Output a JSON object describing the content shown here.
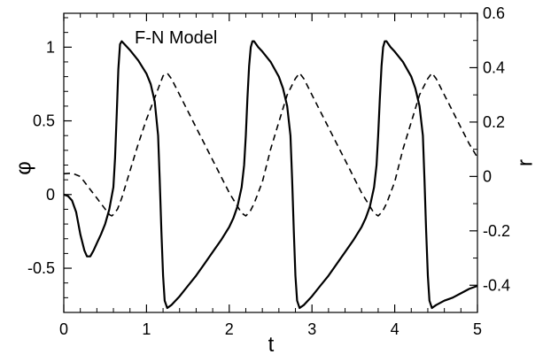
{
  "chart_data": {
    "type": "line",
    "title": "F-N Model",
    "xlabel": "t",
    "ylabel_left": "φ",
    "ylabel_right": "r",
    "xlim": [
      0,
      5
    ],
    "ylim_left": [
      -0.8,
      1.23
    ],
    "ylim_right": [
      -0.5,
      0.6
    ],
    "grid": false,
    "xticks": [
      "0",
      "1",
      "2",
      "3",
      "4",
      "5"
    ],
    "yticks_left": [
      "-0.5",
      "0",
      "0.5",
      "1"
    ],
    "yticks_right": [
      "-0.4",
      "-0.2",
      "0",
      "0.2",
      "0.4",
      "0.6"
    ],
    "series": [
      {
        "axis": "left",
        "style": "solid",
        "color": "#000000",
        "x": [
          0,
          0.05,
          0.1,
          0.15,
          0.2,
          0.25,
          0.28,
          0.32,
          0.36,
          0.4,
          0.45,
          0.5,
          0.55,
          0.6,
          0.62,
          0.64,
          0.66,
          0.68,
          0.7,
          0.75,
          0.8,
          0.9,
          1.0,
          1.05,
          1.1,
          1.14,
          1.16,
          1.18,
          1.2,
          1.22,
          1.25,
          1.3,
          1.4,
          1.5,
          1.6,
          1.7,
          1.8,
          1.9,
          2.0,
          2.05,
          2.1,
          2.15,
          2.18,
          2.2,
          2.22,
          2.24,
          2.26,
          2.28,
          2.3,
          2.35,
          2.4,
          2.5,
          2.6,
          2.65,
          2.7,
          2.74,
          2.76,
          2.78,
          2.8,
          2.82,
          2.85,
          2.9,
          3.0,
          3.1,
          3.2,
          3.3,
          3.4,
          3.5,
          3.6,
          3.65,
          3.7,
          3.75,
          3.78,
          3.8,
          3.82,
          3.84,
          3.86,
          3.88,
          3.9,
          3.95,
          4.0,
          4.1,
          4.2,
          4.25,
          4.3,
          4.34,
          4.36,
          4.38,
          4.4,
          4.42,
          4.45,
          4.5,
          4.6,
          4.7,
          4.8,
          4.9,
          5.0
        ],
        "y": [
          0.0,
          -0.01,
          -0.04,
          -0.12,
          -0.27,
          -0.38,
          -0.42,
          -0.42,
          -0.38,
          -0.33,
          -0.27,
          -0.2,
          -0.1,
          0.05,
          0.25,
          0.55,
          0.85,
          1.02,
          1.04,
          1.01,
          0.98,
          0.91,
          0.82,
          0.75,
          0.63,
          0.4,
          0.1,
          -0.25,
          -0.55,
          -0.72,
          -0.77,
          -0.75,
          -0.69,
          -0.62,
          -0.55,
          -0.47,
          -0.39,
          -0.31,
          -0.22,
          -0.16,
          -0.08,
          0.05,
          0.2,
          0.4,
          0.65,
          0.87,
          1.0,
          1.04,
          1.04,
          1.0,
          0.97,
          0.9,
          0.8,
          0.72,
          0.6,
          0.4,
          0.1,
          -0.25,
          -0.55,
          -0.72,
          -0.77,
          -0.75,
          -0.69,
          -0.62,
          -0.55,
          -0.47,
          -0.39,
          -0.31,
          -0.22,
          -0.16,
          -0.08,
          0.05,
          0.2,
          0.4,
          0.65,
          0.87,
          1.0,
          1.04,
          1.04,
          1.0,
          0.97,
          0.9,
          0.8,
          0.72,
          0.6,
          0.4,
          0.1,
          -0.25,
          -0.55,
          -0.72,
          -0.77,
          -0.75,
          -0.72,
          -0.7,
          -0.67,
          -0.64,
          -0.62
        ]
      },
      {
        "axis": "right",
        "style": "dashed",
        "color": "#000000",
        "x": [
          0,
          0.1,
          0.2,
          0.3,
          0.4,
          0.5,
          0.55,
          0.58,
          0.6,
          0.65,
          0.7,
          0.8,
          0.9,
          1.0,
          1.1,
          1.15,
          1.2,
          1.25,
          1.3,
          1.4,
          1.5,
          1.6,
          1.7,
          1.8,
          1.9,
          2.0,
          2.1,
          2.15,
          2.2,
          2.25,
          2.3,
          2.4,
          2.5,
          2.6,
          2.7,
          2.8,
          2.85,
          2.9,
          3.0,
          3.1,
          3.2,
          3.3,
          3.4,
          3.5,
          3.6,
          3.7,
          3.75,
          3.8,
          3.85,
          3.9,
          4.0,
          4.1,
          4.2,
          4.3,
          4.4,
          4.45,
          4.5,
          4.6,
          4.7,
          4.8,
          4.9,
          5.0
        ],
        "y": [
          0.01,
          0.012,
          0.0,
          -0.04,
          -0.08,
          -0.12,
          -0.14,
          -0.145,
          -0.14,
          -0.12,
          -0.08,
          0.02,
          0.12,
          0.21,
          0.29,
          0.33,
          0.37,
          0.38,
          0.36,
          0.3,
          0.24,
          0.18,
          0.12,
          0.06,
          0.0,
          -0.06,
          -0.11,
          -0.135,
          -0.145,
          -0.13,
          -0.1,
          -0.02,
          0.1,
          0.2,
          0.3,
          0.36,
          0.38,
          0.36,
          0.3,
          0.24,
          0.18,
          0.12,
          0.06,
          0.0,
          -0.06,
          -0.11,
          -0.135,
          -0.145,
          -0.13,
          -0.1,
          -0.02,
          0.1,
          0.2,
          0.3,
          0.36,
          0.38,
          0.36,
          0.3,
          0.24,
          0.18,
          0.12,
          0.07
        ]
      }
    ]
  }
}
